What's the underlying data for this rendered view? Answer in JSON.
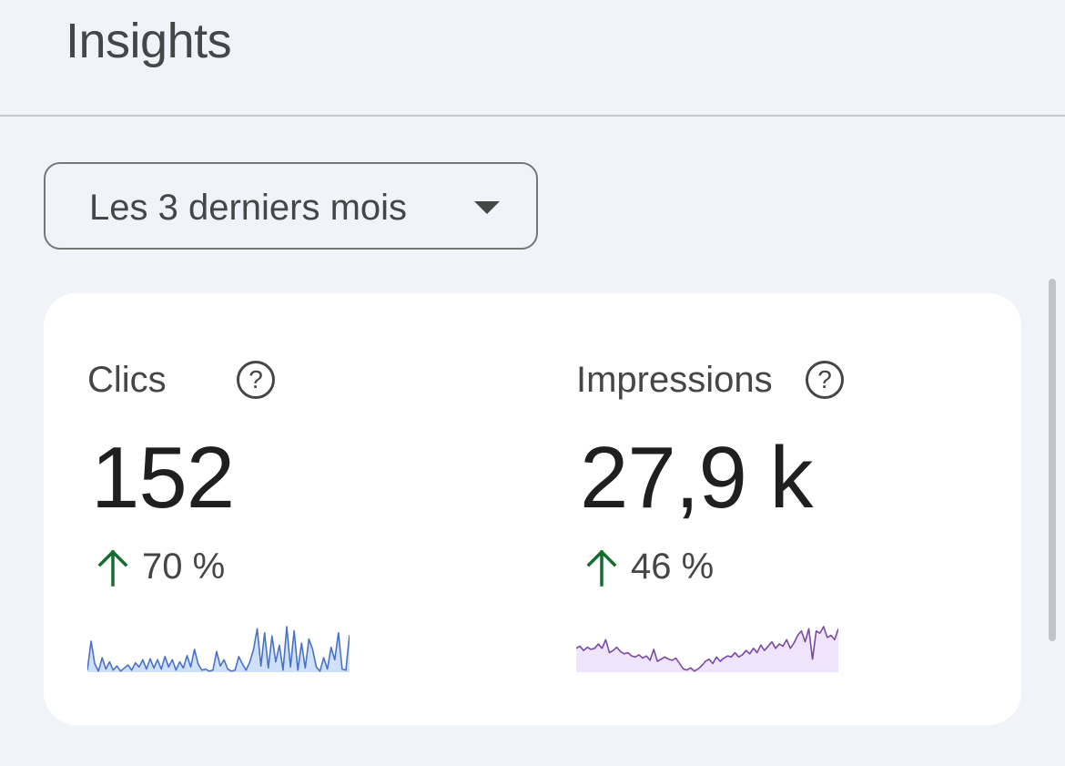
{
  "header": {
    "title": "Insights"
  },
  "period_dropdown": {
    "selected": "Les 3 derniers mois"
  },
  "metrics": {
    "clicks": {
      "label": "Clics",
      "help": "?",
      "value": "152",
      "delta": "70 %",
      "delta_direction": "up",
      "color": "#4a72c4",
      "fill": "#cfe0fb",
      "trend": [
        2,
        30,
        8,
        1,
        14,
        3,
        10,
        2,
        6,
        1,
        4,
        7,
        2,
        9,
        5,
        12,
        3,
        13,
        4,
        12,
        3,
        15,
        5,
        12,
        2,
        10,
        4,
        16,
        5,
        22,
        8,
        2,
        3,
        1,
        2,
        20,
        6,
        12,
        3,
        1,
        2,
        15,
        8,
        2,
        10,
        22,
        42,
        6,
        38,
        4,
        35,
        10,
        26,
        2,
        44,
        5,
        40,
        2,
        28,
        4,
        32,
        22,
        5,
        1,
        14,
        3,
        24,
        12,
        38,
        3,
        2,
        36
      ]
    },
    "impressions": {
      "label": "Impressions",
      "help": "?",
      "value": "27,9 k",
      "delta": "46 %",
      "delta_direction": "up",
      "color": "#7b4aa5",
      "fill": "#efe4fb",
      "trend": [
        22,
        24,
        20,
        23,
        21,
        22,
        26,
        22,
        30,
        18,
        20,
        23,
        19,
        17,
        18,
        15,
        14,
        16,
        13,
        15,
        11,
        21,
        10,
        12,
        14,
        12,
        11,
        13,
        8,
        3,
        2,
        4,
        1,
        3,
        6,
        10,
        12,
        8,
        14,
        10,
        13,
        15,
        14,
        18,
        14,
        16,
        20,
        17,
        22,
        18,
        25,
        20,
        24,
        28,
        22,
        26,
        24,
        30,
        22,
        27,
        34,
        38,
        28,
        40,
        12,
        38,
        36,
        42,
        32,
        34,
        30,
        40
      ]
    }
  }
}
